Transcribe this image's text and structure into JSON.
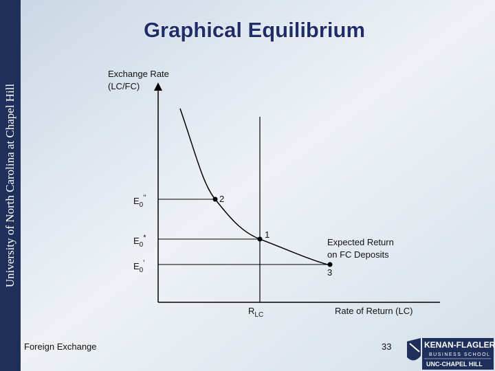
{
  "slide": {
    "side_text": "University of North Carolina at Chapel Hill",
    "title": "Graphical Equilibrium",
    "y_axis_label": [
      "Exchange Rate",
      "(LC/FC)"
    ],
    "levels": [
      {
        "main": "E",
        "sub": "0",
        "sup": "''"
      },
      {
        "main": "E",
        "sub": "0",
        "sup": "*"
      },
      {
        "main": "E",
        "sub": "0",
        "sup": "'"
      }
    ],
    "points": [
      "2",
      "1",
      "3"
    ],
    "curve_label": [
      "Expected Return",
      "on FC Deposits"
    ],
    "rate_label": {
      "main": "R",
      "sub": "LC"
    },
    "x_axis_label": "Rate of Return (LC)",
    "footer": {
      "left": "Foreign Exchange",
      "page": "33"
    },
    "logo": {
      "name": "KENAN-FLAGLER",
      "school": "BUSINESS SCHOOL",
      "university": "UNC-CHAPEL HILL"
    }
  }
}
